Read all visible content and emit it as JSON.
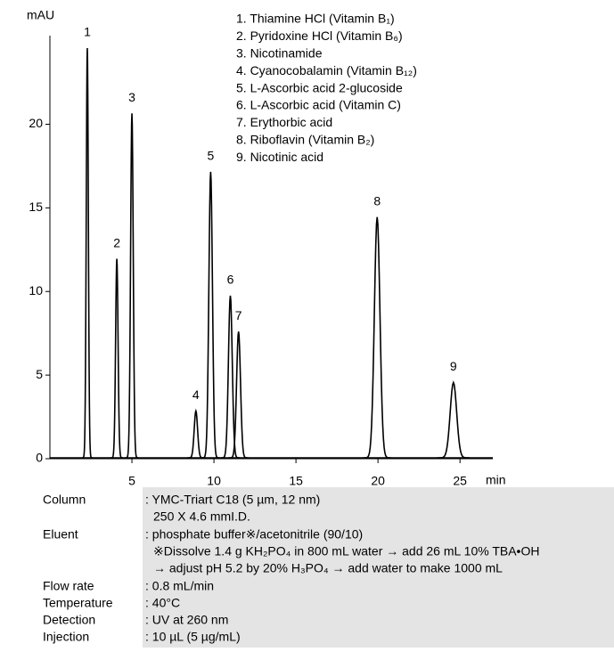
{
  "chart_data": {
    "type": "chromatogram",
    "y_label": "mAU",
    "x_label": "min",
    "xlim": [
      0,
      27
    ],
    "ylim": [
      0,
      25.3
    ],
    "xticks": [
      5,
      10,
      15,
      20,
      25
    ],
    "yticks": [
      0,
      5,
      10,
      15,
      20
    ],
    "color": "#000000",
    "peaks": [
      {
        "label": "1",
        "name": "1. Thiamine HCl (Vitamin B₁)",
        "x": 2.28,
        "value": 24.5
      },
      {
        "label": "2",
        "name": "2. Pyridoxine HCl (Vitamin B₆)",
        "x": 4.08,
        "value": 11.9
      },
      {
        "label": "3",
        "name": "3. Nicotinamide",
        "x": 5.0,
        "value": 20.6
      },
      {
        "label": "4",
        "name": "4. Cyanocobalamin (Vitamin B₁₂)",
        "x": 8.9,
        "value": 2.8
      },
      {
        "label": "5",
        "name": "5. L-Ascorbic acid 2-glucoside",
        "x": 9.8,
        "value": 17.1
      },
      {
        "label": "6",
        "name": "6. L-Ascorbic acid (Vitamin C)",
        "x": 11.0,
        "value": 9.7
      },
      {
        "label": "7",
        "name": "7. Erythorbic acid",
        "x": 11.5,
        "value": 7.55
      },
      {
        "label": "8",
        "name": "8. Riboflavin (Vitamin B₂)",
        "x": 19.95,
        "value": 14.4
      },
      {
        "label": "9",
        "name": "9. Nicotinic acid",
        "x": 24.6,
        "value": 4.5
      }
    ]
  },
  "conditions": [
    {
      "label": "Column",
      "lines": [
        ": YMC-Triart C18 (5 µm, 12 nm)",
        "250 X 4.6 mmI.D."
      ]
    },
    {
      "label": "Eluent",
      "lines": [
        ": phosphate buffer※/acetonitrile (90/10)",
        "※Dissolve 1.4 g KH₂PO₄ in 800 mL water → add 26 mL 10% TBA•OH",
        "→ adjust pH 5.2 by 20% H₃PO₄ → add water to make 1000 mL"
      ]
    },
    {
      "label": "Flow rate",
      "lines": [
        ": 0.8 mL/min"
      ]
    },
    {
      "label": "Temperature",
      "lines": [
        ": 40°C"
      ]
    },
    {
      "label": "Detection",
      "lines": [
        ": UV at 260 nm"
      ]
    },
    {
      "label": "Injection",
      "lines": [
        ": 10 µL (5 µg/mL)"
      ]
    }
  ]
}
